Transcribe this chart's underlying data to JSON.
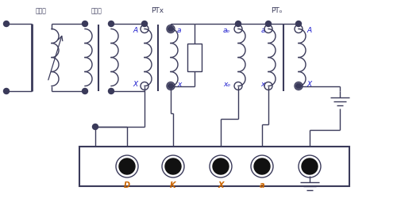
{
  "bg_color": "#ffffff",
  "line_color": "#3a3a5a",
  "text_color_blue": "#1a1acd",
  "text_color_orange": "#cc6600",
  "label_tvr": "调压器",
  "label_upt": "升压器",
  "label_PTx": "PTx",
  "label_PTo": "PTₒ",
  "label_D": "D",
  "label_K": "K",
  "label_X_cap": "X",
  "label_a_low": "a",
  "label_A_cap": "A",
  "label_x_low": "x",
  "label_ao": "aₒ",
  "label_xo": "xₒ"
}
